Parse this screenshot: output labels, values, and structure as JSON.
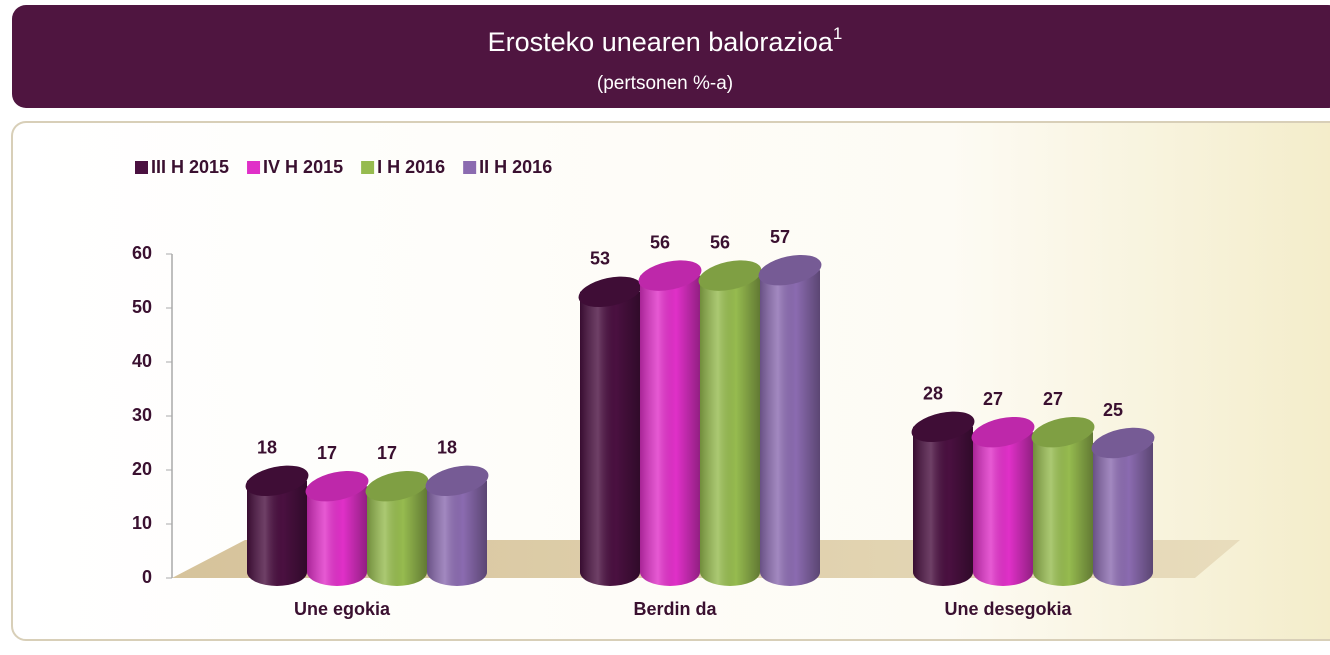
{
  "chart_data": {
    "type": "bar",
    "title": "Erosteko unearen balorazioa",
    "title_superscript": "1",
    "subtitle": "(pertsonen %-a)",
    "categories": [
      "Une egokia",
      "Berdin da",
      "Une desegokia"
    ],
    "series": [
      {
        "name": "III H 2015",
        "color": "#4a1040",
        "values": [
          18,
          53,
          28
        ]
      },
      {
        "name": "IV H 2015",
        "color": "#e030c8",
        "values": [
          17,
          56,
          27
        ]
      },
      {
        "name": "I H 2016",
        "color": "#96bb4f",
        "values": [
          17,
          56,
          27
        ]
      },
      {
        "name": "II H 2016",
        "color": "#8b6bb0",
        "values": [
          18,
          57,
          25
        ]
      }
    ],
    "ylim": [
      0,
      60
    ],
    "yticks": [
      0,
      10,
      20,
      30,
      40,
      50,
      60
    ],
    "legend": "top-left"
  }
}
